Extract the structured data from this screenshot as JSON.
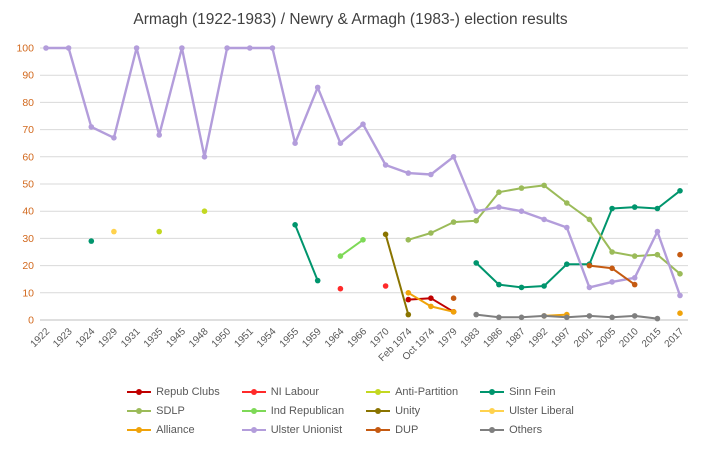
{
  "figure": {
    "background": "#ffffff"
  },
  "chart_data": {
    "type": "line",
    "title": "Armagh (1922-1983) / Newry & Armagh (1983-) election results",
    "title_color": "#404040",
    "xlabel": "",
    "ylabel": "",
    "ylim": [
      0,
      100
    ],
    "ytick_step": 10,
    "ytick_color": "#d2691e",
    "xtick_color": "#595959",
    "gridline_color": "#d9d9d9",
    "axisline_color": "#bfbfbf",
    "grid": true,
    "legend_position": "bottom",
    "legend_text_color": "#595959",
    "categories": [
      "1922",
      "1923",
      "1924",
      "1929",
      "1931",
      "1935",
      "1945",
      "1948",
      "1950",
      "1951",
      "1954",
      "1955",
      "1959",
      "1964",
      "1966",
      "1970",
      "Feb 1974",
      "Oct 1974",
      "1979",
      "1983",
      "1986",
      "1987",
      "1992",
      "1997",
      "2001",
      "2005",
      "2010",
      "2015",
      "2017"
    ],
    "series": [
      {
        "name": "Repub Clubs",
        "color": "#c00000",
        "segments": [
          [
            [
              16,
              7.5
            ],
            [
              17,
              8
            ],
            [
              18,
              3
            ]
          ]
        ]
      },
      {
        "name": "NI Labour",
        "color": "#ff2a2a",
        "segments": [
          [
            [
              13,
              11.5
            ]
          ],
          [
            [
              15,
              12.5
            ]
          ]
        ]
      },
      {
        "name": "Anti-Partition",
        "color": "#c3d821",
        "segments": [
          [
            [
              5,
              32.5
            ]
          ],
          [
            [
              7,
              40
            ]
          ]
        ]
      },
      {
        "name": "Sinn Fein",
        "color": "#00956d",
        "segments": [
          [
            [
              2,
              29
            ]
          ],
          [
            [
              11,
              35
            ],
            [
              12,
              14.5
            ]
          ],
          [
            [
              19,
              21
            ],
            [
              20,
              13
            ],
            [
              21,
              12
            ],
            [
              22,
              12.5
            ],
            [
              23,
              20.5
            ],
            [
              24,
              20.5
            ],
            [
              25,
              41
            ],
            [
              26,
              41.5
            ],
            [
              27,
              41
            ],
            [
              28,
              47.5
            ]
          ]
        ]
      },
      {
        "name": "SDLP",
        "color": "#9bbb59",
        "segments": [
          [
            [
              16,
              29.5
            ],
            [
              17,
              32
            ],
            [
              18,
              36
            ],
            [
              19,
              36.5
            ],
            [
              20,
              47
            ],
            [
              21,
              48.5
            ],
            [
              22,
              49.5
            ],
            [
              23,
              43
            ],
            [
              24,
              37
            ],
            [
              25,
              25
            ],
            [
              26,
              23.5
            ],
            [
              27,
              24
            ],
            [
              28,
              17
            ]
          ]
        ]
      },
      {
        "name": "Ind Republican",
        "color": "#7ed957",
        "segments": [
          [
            [
              13,
              23.5
            ],
            [
              14,
              29.5
            ]
          ]
        ]
      },
      {
        "name": "Unity",
        "color": "#8a7400",
        "segments": [
          [
            [
              15,
              31.5
            ],
            [
              16,
              2
            ]
          ]
        ]
      },
      {
        "name": "Ulster Liberal",
        "color": "#ffd24d",
        "segments": [
          [
            [
              3,
              32.5
            ]
          ]
        ]
      },
      {
        "name": "Alliance",
        "color": "#f0a30a",
        "segments": [
          [
            [
              16,
              10
            ],
            [
              17,
              5
            ],
            [
              18,
              3
            ]
          ],
          [
            [
              22,
              1.5
            ],
            [
              23,
              2
            ]
          ],
          [
            [
              28,
              2.5
            ]
          ]
        ]
      },
      {
        "name": "Ulster Unionist",
        "color": "#b39ddb",
        "width": 2.4,
        "segments": [
          [
            [
              0,
              100
            ],
            [
              1,
              100
            ],
            [
              2,
              71
            ],
            [
              3,
              67
            ],
            [
              4,
              100
            ],
            [
              5,
              68
            ],
            [
              6,
              100
            ],
            [
              7,
              60
            ],
            [
              8,
              100
            ],
            [
              9,
              100
            ],
            [
              10,
              100
            ],
            [
              11,
              65
            ],
            [
              12,
              85.5
            ],
            [
              13,
              65
            ],
            [
              14,
              72
            ],
            [
              15,
              57
            ],
            [
              16,
              54
            ],
            [
              17,
              53.5
            ],
            [
              18,
              60
            ],
            [
              19,
              40
            ],
            [
              20,
              41.5
            ],
            [
              21,
              40
            ],
            [
              22,
              37
            ],
            [
              23,
              34
            ],
            [
              24,
              12
            ],
            [
              25,
              14
            ],
            [
              26,
              15.5
            ],
            [
              27,
              32.5
            ],
            [
              28,
              9
            ]
          ]
        ]
      },
      {
        "name": "DUP",
        "color": "#c55a11",
        "segments": [
          [
            [
              18,
              8
            ]
          ],
          [
            [
              24,
              20
            ],
            [
              25,
              19
            ],
            [
              26,
              13
            ]
          ],
          [
            [
              28,
              24
            ]
          ]
        ]
      },
      {
        "name": "Others",
        "color": "#7f7f7f",
        "segments": [
          [
            [
              19,
              2
            ],
            [
              20,
              1
            ],
            [
              21,
              1
            ],
            [
              22,
              1.5
            ],
            [
              23,
              1
            ],
            [
              24,
              1.5
            ],
            [
              25,
              1
            ],
            [
              26,
              1.5
            ],
            [
              27,
              0.5
            ]
          ]
        ]
      }
    ]
  }
}
